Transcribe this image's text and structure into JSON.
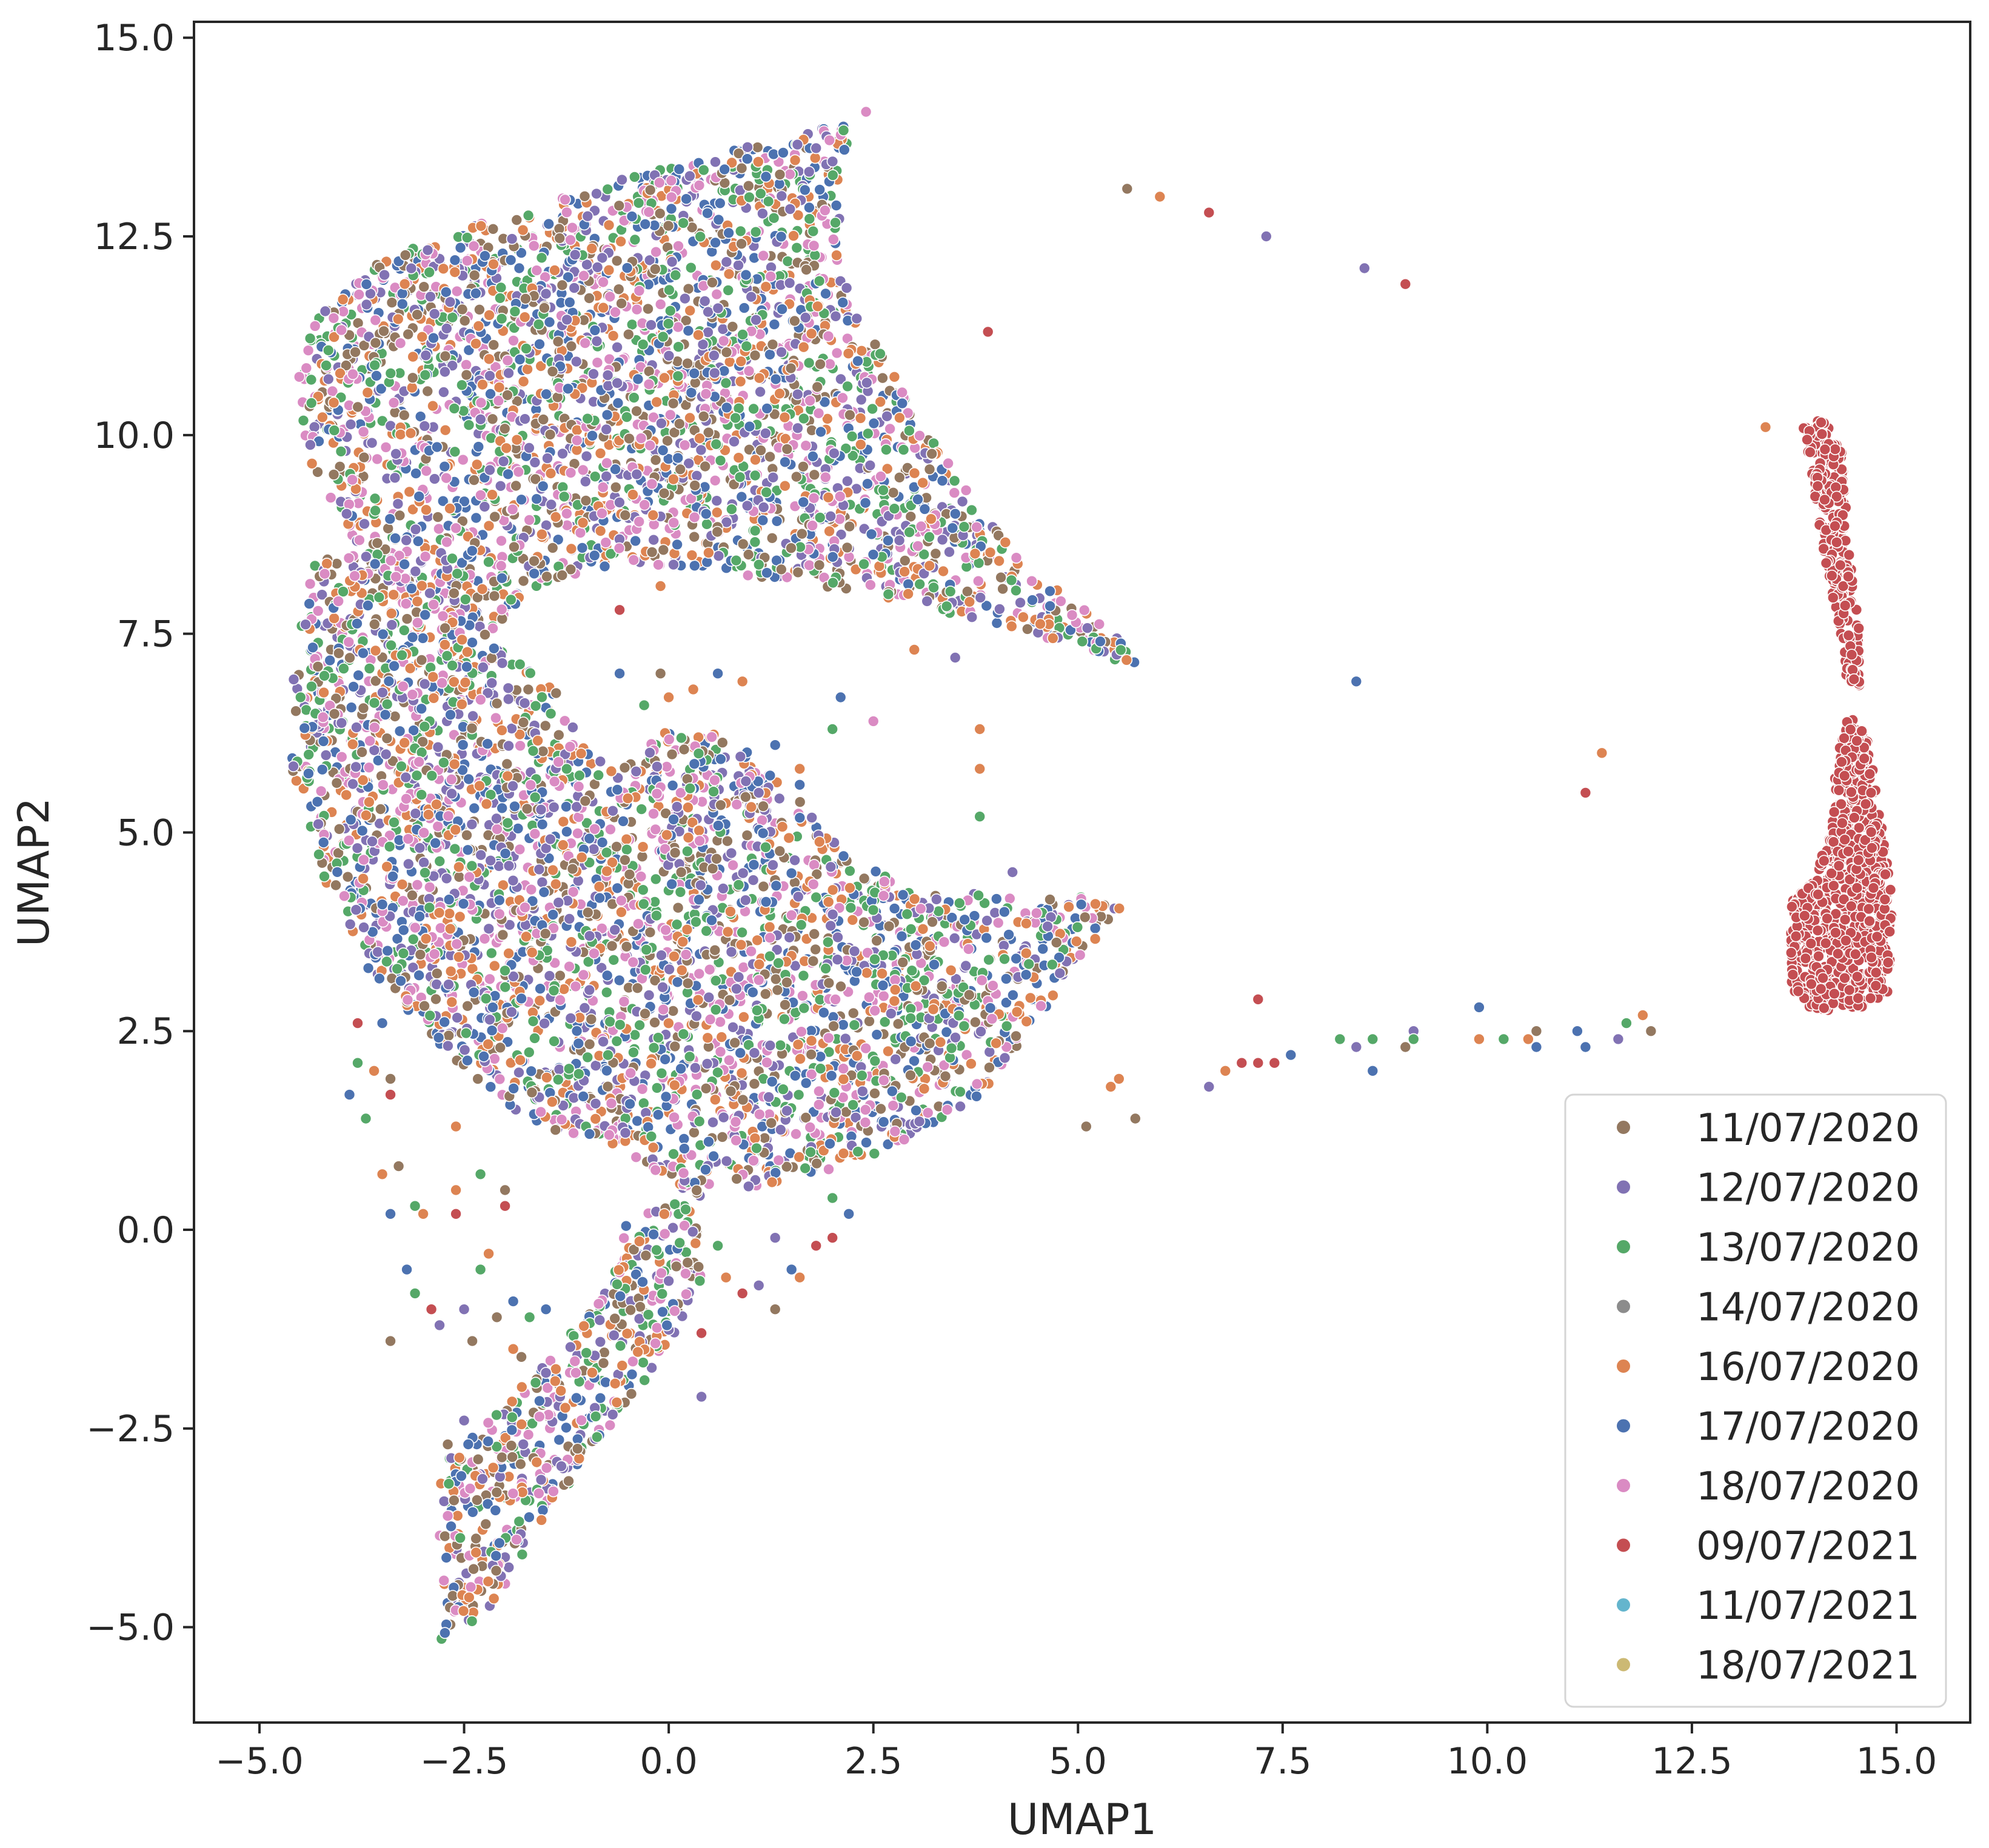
{
  "chart_data": {
    "type": "scatter",
    "title": "",
    "xlabel": "UMAP1",
    "ylabel": "UMAP2",
    "xlim": [
      -5.8,
      15.9
    ],
    "ylim": [
      -6.2,
      15.2
    ],
    "x_ticks": [
      -5.0,
      -2.5,
      0.0,
      2.5,
      5.0,
      7.5,
      10.0,
      12.5,
      15.0
    ],
    "x_tick_labels": [
      "−5.0",
      "−2.5",
      "0.0",
      "2.5",
      "5.0",
      "7.5",
      "10.0",
      "12.5",
      "15.0"
    ],
    "y_ticks": [
      -5.0,
      -2.5,
      0.0,
      2.5,
      5.0,
      7.5,
      10.0,
      12.5,
      15.0
    ],
    "y_tick_labels": [
      "−5.0",
      "−2.5",
      "0.0",
      "2.5",
      "5.0",
      "7.5",
      "10.0",
      "12.5",
      "15.0"
    ],
    "grid": false,
    "legend_position": "bottom-right",
    "series": [
      {
        "name": "11/07/2020",
        "color": "#937860"
      },
      {
        "name": "12/07/2020",
        "color": "#8172b3"
      },
      {
        "name": "13/07/2020",
        "color": "#55a868"
      },
      {
        "name": "14/07/2020",
        "color": "#8c8c8c"
      },
      {
        "name": "16/07/2020",
        "color": "#dd8452"
      },
      {
        "name": "17/07/2020",
        "color": "#4c72b0"
      },
      {
        "name": "18/07/2020",
        "color": "#da8bc3"
      },
      {
        "name": "09/07/2021",
        "color": "#c44e52"
      },
      {
        "name": "11/07/2021",
        "color": "#64b5cd"
      },
      {
        "name": "18/07/2021",
        "color": "#ccb974"
      }
    ],
    "mixed_series_indices": [
      0,
      1,
      2,
      4,
      5,
      6
    ],
    "main_cluster_regions": [
      {
        "name": "upper-arm",
        "polygon": [
          [
            -4.6,
            10.5
          ],
          [
            -4.3,
            11.5
          ],
          [
            -3.5,
            12.2
          ],
          [
            -2.5,
            12.6
          ],
          [
            -1.0,
            13.1
          ],
          [
            0.5,
            13.5
          ],
          [
            2.0,
            13.9
          ],
          [
            2.7,
            14.2
          ],
          [
            2.1,
            13.4
          ],
          [
            2.1,
            12.0
          ],
          [
            2.6,
            11.0
          ],
          [
            3.2,
            10.0
          ],
          [
            3.7,
            9.2
          ],
          [
            4.5,
            8.3
          ],
          [
            5.5,
            7.5
          ],
          [
            5.9,
            7.0
          ],
          [
            5.0,
            7.3
          ],
          [
            4.0,
            7.6
          ],
          [
            2.5,
            8.0
          ],
          [
            1.2,
            8.2
          ],
          [
            0.5,
            8.3
          ],
          [
            -0.6,
            8.4
          ],
          [
            -1.6,
            8.1
          ],
          [
            -2.3,
            7.4
          ],
          [
            -3.5,
            8.2
          ],
          [
            -4.4,
            9.5
          ]
        ]
      },
      {
        "name": "body",
        "polygon": [
          [
            -4.6,
            7.2
          ],
          [
            -4.3,
            8.5
          ],
          [
            -3.3,
            8.5
          ],
          [
            -2.3,
            7.5
          ],
          [
            -1.4,
            6.8
          ],
          [
            -1.0,
            6.0
          ],
          [
            -0.6,
            5.8
          ],
          [
            0.0,
            6.3
          ],
          [
            0.8,
            6.2
          ],
          [
            1.7,
            5.3
          ],
          [
            2.2,
            4.7
          ],
          [
            3.0,
            4.3
          ],
          [
            4.0,
            4.2
          ],
          [
            5.0,
            4.2
          ],
          [
            5.6,
            4.1
          ],
          [
            5.0,
            3.4
          ],
          [
            4.5,
            2.6
          ],
          [
            3.8,
            1.7
          ],
          [
            3.0,
            1.1
          ],
          [
            1.5,
            0.6
          ],
          [
            0.3,
            0.4
          ],
          [
            -0.6,
            1.0
          ],
          [
            -1.6,
            1.3
          ],
          [
            -2.3,
            1.8
          ],
          [
            -3.0,
            2.5
          ],
          [
            -3.7,
            3.3
          ],
          [
            -4.3,
            4.6
          ],
          [
            -4.6,
            5.8
          ]
        ]
      },
      {
        "name": "lower-tail",
        "polygon": [
          [
            -2.8,
            -5.2
          ],
          [
            -2.8,
            -3.0
          ],
          [
            -2.2,
            -2.4
          ],
          [
            -1.3,
            -1.4
          ],
          [
            -0.7,
            -0.7
          ],
          [
            -0.5,
            0.2
          ],
          [
            0.3,
            0.4
          ],
          [
            0.4,
            -0.6
          ],
          [
            0.0,
            -1.5
          ],
          [
            -0.8,
            -2.6
          ],
          [
            -1.5,
            -3.6
          ],
          [
            -2.2,
            -4.8
          ]
        ]
      }
    ],
    "red_cluster_regions": [
      {
        "name": "red-strand",
        "polygon": [
          [
            13.85,
            10.1
          ],
          [
            14.1,
            10.2
          ],
          [
            14.35,
            9.8
          ],
          [
            14.4,
            8.7
          ],
          [
            14.55,
            7.5
          ],
          [
            14.55,
            6.8
          ],
          [
            14.4,
            6.8
          ],
          [
            14.3,
            7.5
          ],
          [
            14.1,
            8.6
          ],
          [
            13.95,
            9.5
          ]
        ]
      },
      {
        "name": "red-blob",
        "polygon": [
          [
            13.7,
            3.0
          ],
          [
            13.7,
            4.1
          ],
          [
            14.0,
            4.5
          ],
          [
            14.2,
            5.0
          ],
          [
            14.25,
            5.8
          ],
          [
            14.4,
            6.5
          ],
          [
            14.65,
            6.2
          ],
          [
            14.8,
            5.2
          ],
          [
            14.95,
            4.2
          ],
          [
            14.9,
            3.0
          ],
          [
            14.6,
            2.8
          ],
          [
            14.0,
            2.75
          ]
        ]
      }
    ],
    "scattered_points": [
      [
        5.6,
        13.1,
        0
      ],
      [
        6.0,
        13.0,
        4
      ],
      [
        6.6,
        12.8,
        7
      ],
      [
        7.3,
        12.5,
        1
      ],
      [
        8.5,
        12.1,
        1
      ],
      [
        9.0,
        11.9,
        7
      ],
      [
        3.9,
        11.3,
        7
      ],
      [
        13.4,
        10.1,
        4
      ],
      [
        8.4,
        6.9,
        5
      ],
      [
        11.4,
        6.0,
        4
      ],
      [
        11.2,
        5.5,
        7
      ],
      [
        3.8,
        5.8,
        4
      ],
      [
        3.8,
        5.2,
        2
      ],
      [
        4.2,
        4.5,
        1
      ],
      [
        3.8,
        6.3,
        4
      ],
      [
        5.5,
        1.9,
        4
      ],
      [
        5.1,
        1.3,
        0
      ],
      [
        5.7,
        1.4,
        0
      ],
      [
        5.4,
        1.8,
        4
      ],
      [
        6.6,
        1.8,
        1
      ],
      [
        6.8,
        2.0,
        4
      ],
      [
        7.0,
        2.1,
        7
      ],
      [
        7.2,
        2.1,
        7
      ],
      [
        7.4,
        2.1,
        7
      ],
      [
        7.6,
        2.2,
        5
      ],
      [
        7.2,
        2.9,
        7
      ],
      [
        8.2,
        2.4,
        2
      ],
      [
        8.4,
        2.3,
        1
      ],
      [
        8.6,
        2.4,
        2
      ],
      [
        8.6,
        2.0,
        5
      ],
      [
        9.0,
        2.3,
        0
      ],
      [
        9.1,
        2.5,
        1
      ],
      [
        9.1,
        2.4,
        2
      ],
      [
        9.9,
        2.8,
        5
      ],
      [
        9.9,
        2.4,
        4
      ],
      [
        10.2,
        2.4,
        2
      ],
      [
        10.5,
        2.4,
        4
      ],
      [
        10.6,
        2.5,
        0
      ],
      [
        10.6,
        2.3,
        5
      ],
      [
        11.1,
        2.5,
        5
      ],
      [
        11.2,
        2.3,
        5
      ],
      [
        11.6,
        2.4,
        1
      ],
      [
        11.7,
        2.6,
        2
      ],
      [
        11.9,
        2.7,
        4
      ],
      [
        12.0,
        2.5,
        0
      ],
      [
        -3.8,
        2.6,
        7
      ],
      [
        -3.5,
        2.6,
        5
      ],
      [
        -3.8,
        2.1,
        2
      ],
      [
        -3.6,
        2.0,
        4
      ],
      [
        -3.9,
        1.7,
        5
      ],
      [
        -3.4,
        1.9,
        0
      ],
      [
        -3.4,
        1.7,
        7
      ],
      [
        -3.7,
        1.4,
        2
      ],
      [
        -3.5,
        0.7,
        4
      ],
      [
        -3.3,
        0.8,
        0
      ],
      [
        -3.1,
        0.3,
        2
      ],
      [
        -3.0,
        0.2,
        4
      ],
      [
        -3.4,
        0.2,
        5
      ],
      [
        -2.6,
        1.3,
        4
      ],
      [
        -2.6,
        0.5,
        4
      ],
      [
        -2.6,
        0.2,
        7
      ],
      [
        -2.3,
        0.7,
        2
      ],
      [
        -2.0,
        0.5,
        0
      ],
      [
        -2.0,
        0.3,
        7
      ],
      [
        -2.2,
        -0.3,
        4
      ],
      [
        -2.3,
        -0.5,
        2
      ],
      [
        -2.5,
        -1.0,
        1
      ],
      [
        -2.1,
        -1.1,
        0
      ],
      [
        -1.9,
        -0.9,
        5
      ],
      [
        -1.7,
        -1.1,
        2
      ],
      [
        -1.5,
        -1.0,
        5
      ],
      [
        -2.8,
        -1.2,
        1
      ],
      [
        -2.4,
        -1.4,
        0
      ],
      [
        -3.1,
        -0.8,
        2
      ],
      [
        -3.2,
        -0.5,
        5
      ],
      [
        -3.4,
        -1.4,
        0
      ],
      [
        -2.9,
        -1.0,
        7
      ],
      [
        -1.9,
        -1.5,
        4
      ],
      [
        -1.8,
        -1.6,
        0
      ],
      [
        -1.5,
        -1.8,
        1
      ],
      [
        -2.7,
        -3.6,
        6
      ],
      [
        -2.7,
        -2.7,
        0
      ],
      [
        -2.5,
        -2.4,
        1
      ],
      [
        1.5,
        -0.5,
        5
      ],
      [
        1.3,
        -1.0,
        0
      ],
      [
        1.8,
        -0.2,
        7
      ],
      [
        1.6,
        -0.6,
        4
      ],
      [
        2.2,
        0.2,
        5
      ],
      [
        2.0,
        0.4,
        2
      ],
      [
        1.3,
        -0.1,
        1
      ],
      [
        0.9,
        -0.8,
        7
      ],
      [
        0.7,
        -0.6,
        4
      ],
      [
        0.4,
        -1.3,
        7
      ],
      [
        0.4,
        -2.1,
        1
      ],
      [
        2.0,
        -0.1,
        7
      ],
      [
        1.1,
        -0.7,
        1
      ],
      [
        0.6,
        -0.2,
        2
      ],
      [
        2.5,
        6.4,
        6
      ],
      [
        2.1,
        6.7,
        5
      ],
      [
        2.0,
        6.3,
        2
      ],
      [
        1.6,
        5.8,
        4
      ],
      [
        1.6,
        5.6,
        5
      ],
      [
        1.3,
        6.1,
        5
      ],
      [
        1.1,
        5.5,
        1
      ],
      [
        3.0,
        7.3,
        4
      ],
      [
        3.5,
        7.2,
        1
      ],
      [
        0.6,
        7.0,
        5
      ],
      [
        0.3,
        6.8,
        4
      ],
      [
        0.9,
        6.9,
        4
      ],
      [
        -0.1,
        7.0,
        0
      ],
      [
        -0.6,
        7.0,
        5
      ],
      [
        -0.3,
        6.6,
        2
      ],
      [
        0.0,
        6.7,
        4
      ],
      [
        -0.6,
        7.8,
        7
      ],
      [
        -0.1,
        8.1,
        4
      ]
    ]
  }
}
